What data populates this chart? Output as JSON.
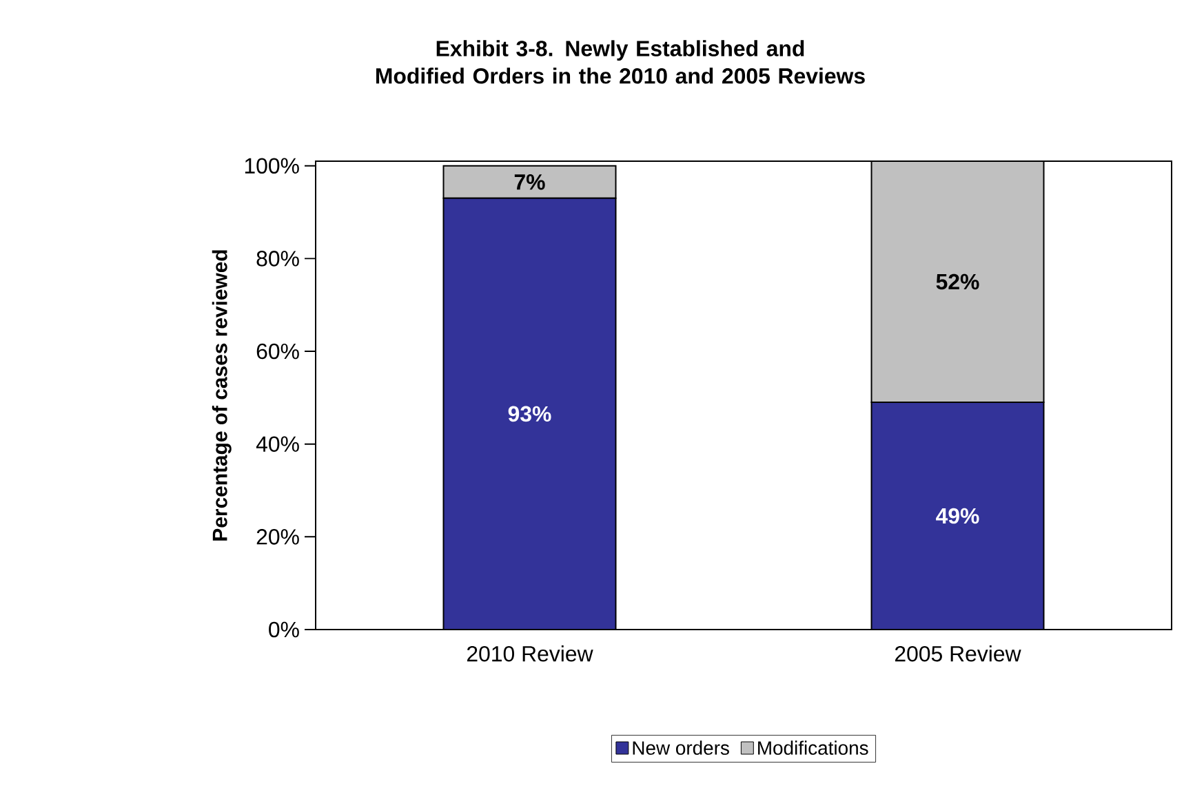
{
  "chart_data": {
    "type": "bar",
    "title": "Exhibit 3-8. Newly Established and\nModified Orders in the 2010 and 2005 Reviews",
    "ylabel": "Percentage of cases reviewed",
    "categories": [
      "2010 Review",
      "2005 Review"
    ],
    "stacked": true,
    "series": [
      {
        "name": "New orders",
        "color": "#333399",
        "values": [
          93,
          49
        ],
        "value_labels": [
          "93%",
          "49%"
        ]
      },
      {
        "name": "Modifications",
        "color": "#c0c0c0",
        "values": [
          7,
          52
        ],
        "value_labels": [
          "7%",
          "52%"
        ]
      }
    ],
    "ylim": [
      0,
      101
    ],
    "yticks": [
      {
        "value": 0,
        "label": "0%"
      },
      {
        "value": 20,
        "label": "20%"
      },
      {
        "value": 40,
        "label": "40%"
      },
      {
        "value": 60,
        "label": "60%"
      },
      {
        "value": 80,
        "label": "80%"
      },
      {
        "value": 100,
        "label": "100%"
      }
    ],
    "grid": false,
    "legend": "bottom"
  }
}
